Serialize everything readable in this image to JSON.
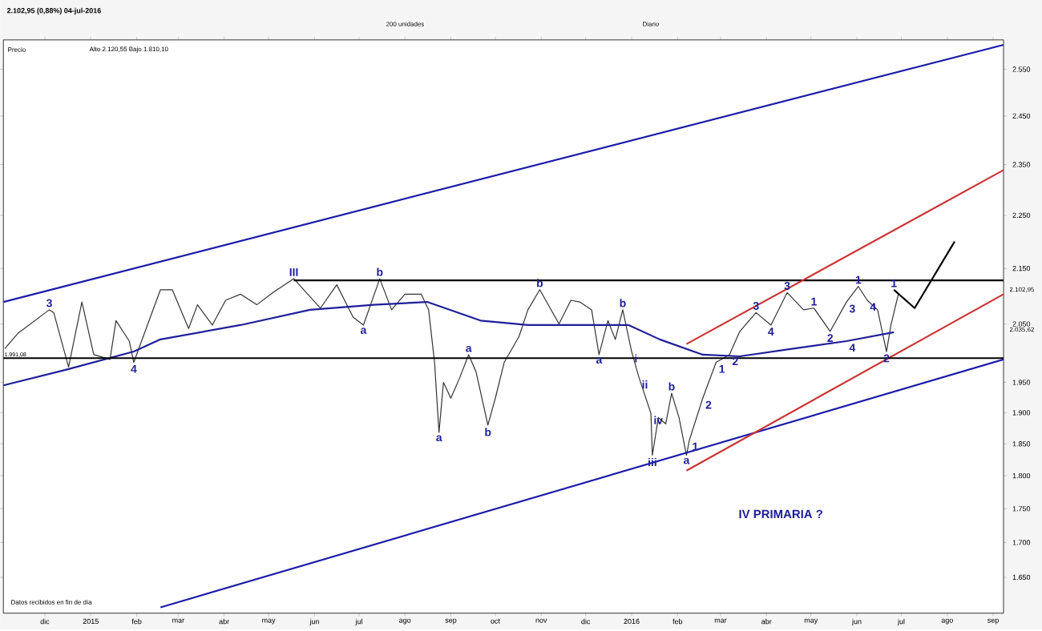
{
  "chart_data": {
    "type": "line",
    "title": "2.102,95 (0,88%) 04-jul-2016",
    "log": "y",
    "xlim": [
      "2014-11-03",
      "2016-09-08"
    ],
    "ylim": [
      1600,
      2615
    ],
    "xticks": [
      {
        "value": "2014-12-01",
        "label": "dic"
      },
      {
        "value": "2015-01-01",
        "label": "2015"
      },
      {
        "value": "2015-02-01",
        "label": "feb"
      },
      {
        "value": "2015-03-01",
        "label": "mar"
      },
      {
        "value": "2015-04-01",
        "label": "abr"
      },
      {
        "value": "2015-05-01",
        "label": "may"
      },
      {
        "value": "2015-06-01",
        "label": "jun"
      },
      {
        "value": "2015-07-01",
        "label": "jul"
      },
      {
        "value": "2015-08-01",
        "label": "ago"
      },
      {
        "value": "2015-09-01",
        "label": "sep"
      },
      {
        "value": "2015-10-01",
        "label": "oct"
      },
      {
        "value": "2015-11-01",
        "label": "nov"
      },
      {
        "value": "2015-12-01",
        "label": "dic"
      },
      {
        "value": "2016-01-01",
        "label": "2016"
      },
      {
        "value": "2016-02-01",
        "label": "feb"
      },
      {
        "value": "2016-03-01",
        "label": "mar"
      },
      {
        "value": "2016-04-01",
        "label": "abr"
      },
      {
        "value": "2016-05-01",
        "label": "may"
      },
      {
        "value": "2016-06-01",
        "label": "jun"
      },
      {
        "value": "2016-07-01",
        "label": "jul"
      },
      {
        "value": "2016-08-01",
        "label": "ago"
      },
      {
        "value": "2016-09-01",
        "label": "sep"
      }
    ],
    "yticks": [
      {
        "value": 1650,
        "label": "1.650"
      },
      {
        "value": 1700,
        "label": "1.700"
      },
      {
        "value": 1750,
        "label": "1.750"
      },
      {
        "value": 1800,
        "label": "1.800"
      },
      {
        "value": 1850,
        "label": "1.850"
      },
      {
        "value": 1900,
        "label": "1.900"
      },
      {
        "value": 1950,
        "label": "1.950"
      },
      {
        "value": 2050,
        "label": "2.050"
      },
      {
        "value": 2150,
        "label": "2.150"
      },
      {
        "value": 2250,
        "label": "2.250"
      },
      {
        "value": 2350,
        "label": "2.350"
      },
      {
        "value": 2450,
        "label": "2.450"
      },
      {
        "value": 2550,
        "label": "2.550"
      }
    ],
    "ref_lines": [
      {
        "axis": "y",
        "value": 1991.08,
        "label": "1.991,08",
        "color": "#000000"
      }
    ],
    "series": [
      {
        "color": "#333333",
        "x": [
          "2014-11-04",
          "2014-11-13",
          "2014-12-04",
          "2014-12-07",
          "2014-12-17",
          "2014-12-26",
          "2015-01-03",
          "2015-01-14",
          "2015-01-18",
          "2015-01-27",
          "2015-01-30",
          "2015-02-17",
          "2015-02-25",
          "2015-03-08",
          "2015-03-14",
          "2015-03-24",
          "2015-04-02",
          "2015-04-12",
          "2015-04-23",
          "2015-05-04",
          "2015-05-18",
          "2015-06-05",
          "2015-06-16",
          "2015-06-27",
          "2015-07-04",
          "2015-07-15",
          "2015-07-23",
          "2015-08-01",
          "2015-08-12",
          "2015-08-17",
          "2015-08-21",
          "2015-08-24",
          "2015-08-27",
          "2015-09-01",
          "2015-09-07",
          "2015-09-13",
          "2015-09-18",
          "2015-09-26",
          "2015-10-01",
          "2015-10-07",
          "2015-10-17",
          "2015-10-23",
          "2015-10-31",
          "2015-11-13",
          "2015-11-21",
          "2015-11-27",
          "2015-12-05",
          "2015-12-10",
          "2015-12-16",
          "2015-12-21",
          "2015-12-26",
          "2016-01-01",
          "2016-01-06",
          "2016-01-14",
          "2016-01-15",
          "2016-01-19",
          "2016-01-24",
          "2016-01-28",
          "2016-02-02",
          "2016-02-07",
          "2016-02-09",
          "2016-02-18",
          "2016-02-27",
          "2016-03-07",
          "2016-03-14",
          "2016-03-25",
          "2016-04-04",
          "2016-04-15",
          "2016-04-26",
          "2016-05-03",
          "2016-05-14",
          "2016-05-25",
          "2016-06-02",
          "2016-06-08",
          "2016-06-15",
          "2016-06-21",
          "2016-06-24",
          "2016-06-29"
        ],
        "values": [
          2007,
          2034,
          2075,
          2070,
          1976,
          2089,
          1997,
          1989,
          2056,
          2020,
          1984,
          2111,
          2111,
          2042,
          2084,
          2048,
          2092,
          2103,
          2084,
          2106,
          2131,
          2078,
          2120,
          2062,
          2048,
          2131,
          2075,
          2103,
          2103,
          2075,
          1984,
          1868,
          1950,
          1924,
          1958,
          1997,
          1968,
          1880,
          1924,
          1984,
          2028,
          2075,
          2111,
          2050,
          2092,
          2089,
          2075,
          1997,
          2056,
          2023,
          2075,
          2002,
          1958,
          1899,
          1832,
          1892,
          1882,
          1932,
          1892,
          1832,
          1856,
          1924,
          1984,
          1997,
          2037,
          2070,
          2048,
          2106,
          2075,
          2078,
          2037,
          2089,
          2117,
          2092,
          2075,
          2002,
          2048,
          2102.95
        ]
      },
      {
        "color": "#1f1f9a",
        "x": [
          "2014-11-03",
          "2014-12-15",
          "2015-01-30",
          "2015-02-17",
          "2015-04-12",
          "2015-05-29",
          "2015-07-11",
          "2015-08-16",
          "2015-09-21",
          "2015-10-23",
          "2015-12-30",
          "2016-01-20",
          "2016-02-18",
          "2016-03-14",
          "2016-04-19",
          "2016-05-25",
          "2016-06-26"
        ],
        "values": [
          1945,
          1971,
          2002,
          2023,
          2048,
          2075,
          2084,
          2089,
          2056,
          2048,
          2048,
          2023,
          1997,
          1994,
          2007,
          2020,
          2035.62
        ]
      },
      {
        "color": "#000000",
        "x": [
          "2015-05-18",
          "2016-09-08"
        ],
        "values": [
          2128,
          2128
        ]
      },
      {
        "color": "#1a1aa8",
        "x": [
          "2014-11-03",
          "2016-09-08"
        ],
        "values": [
          2089,
          2604
        ]
      },
      {
        "color": "#1a1aa8",
        "x": [
          "2015-02-17",
          "2016-09-08"
        ],
        "values": [
          1608,
          1989
        ]
      },
      {
        "color": "#cc3333",
        "x": [
          "2016-02-07",
          "2016-09-08"
        ],
        "values": [
          1808,
          2103
        ]
      },
      {
        "color": "#cc3333",
        "x": [
          "2016-02-07",
          "2016-09-08"
        ],
        "values": [
          2015,
          2339
        ]
      },
      {
        "color": "#000000",
        "x": [
          "2016-06-26",
          "2016-07-10",
          "2016-08-06"
        ],
        "values": [
          2111,
          2078,
          2200
        ]
      }
    ],
    "annotations": [
      "Precio",
      "Alto 2.120,55 Bajo 1.810,10",
      "200 unidades",
      "Diario",
      "Datos recibidos en fin de día",
      "IV PRIMARIA ?",
      "2.102,95",
      "2.035,62",
      {
        "text": "3",
        "x": "2014-12-04",
        "y": 2075
      },
      {
        "text": "4",
        "x": "2015-01-30",
        "y": 1984
      },
      {
        "text": "III",
        "x": "2015-05-18",
        "y": 2131
      },
      {
        "text": "b",
        "x": "2015-07-15",
        "y": 2131
      },
      {
        "text": "a",
        "x": "2015-07-04",
        "y": 2048
      },
      {
        "text": "a",
        "x": "2015-08-24",
        "y": 1868
      },
      {
        "text": "a",
        "x": "2015-09-13",
        "y": 1997
      },
      {
        "text": "b",
        "x": "2015-09-26",
        "y": 1880
      },
      {
        "text": "b",
        "x": "2015-10-31",
        "y": 2111
      },
      {
        "text": "a",
        "x": "2015-12-10",
        "y": 1997
      },
      {
        "text": "b",
        "x": "2015-12-26",
        "y": 2075
      },
      {
        "text": "i",
        "x": "2016-01-01",
        "y": 2002
      },
      {
        "text": "ii",
        "x": "2016-01-06",
        "y": 1958
      },
      {
        "text": "iv",
        "x": "2016-01-14",
        "y": 1899
      },
      {
        "text": "iii",
        "x": "2016-01-15",
        "y": 1832
      },
      {
        "text": "b",
        "x": "2016-01-28",
        "y": 1932
      },
      {
        "text": "a",
        "x": "2016-02-07",
        "y": 1832
      },
      {
        "text": "1",
        "x": "2016-02-09",
        "y": 1856
      },
      {
        "text": "2",
        "x": "2016-02-18",
        "y": 1924
      },
      {
        "text": "1",
        "x": "2016-02-27",
        "y": 1984
      },
      {
        "text": "2",
        "x": "2016-03-07",
        "y": 1997
      },
      {
        "text": "3",
        "x": "2016-03-25",
        "y": 2070
      },
      {
        "text": "4",
        "x": "2016-04-04",
        "y": 2048
      },
      {
        "text": "3",
        "x": "2016-04-15",
        "y": 2106
      },
      {
        "text": "1",
        "x": "2016-05-03",
        "y": 2078
      },
      {
        "text": "2",
        "x": "2016-05-14",
        "y": 2037
      },
      {
        "text": "3",
        "x": "2016-05-25",
        "y": 2089
      },
      {
        "text": "4",
        "x": "2016-06-08",
        "y": 2092
      },
      {
        "text": "4",
        "x": "2016-05-25",
        "y": 2020
      },
      {
        "text": "1",
        "x": "2016-06-02",
        "y": 2117
      },
      {
        "text": "1",
        "x": "2016-06-26",
        "y": 2111
      },
      {
        "text": "2",
        "x": "2016-06-21",
        "y": 2002
      }
    ]
  }
}
